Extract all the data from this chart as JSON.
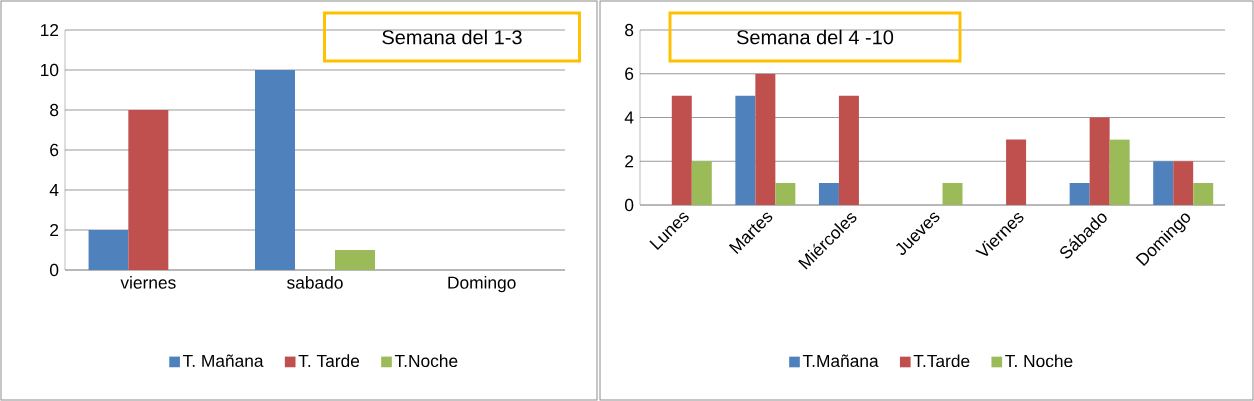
{
  "chart_data": [
    {
      "type": "bar",
      "title": "Semana del 1-3",
      "categories": [
        "viernes",
        "sabado",
        "Domingo"
      ],
      "series": [
        {
          "name": "T. Mañana",
          "color": "#4f81bd",
          "values": [
            2,
            10,
            0
          ]
        },
        {
          "name": "T. Tarde",
          "color": "#c0504d",
          "values": [
            8,
            0,
            0
          ]
        },
        {
          "name": "T.Noche",
          "color": "#9bbb59",
          "values": [
            0,
            1,
            0
          ]
        }
      ],
      "ylim": [
        0,
        12
      ],
      "yticks": [
        0,
        2,
        4,
        6,
        8,
        10,
        12
      ],
      "grid": "y",
      "legend": "bottom"
    },
    {
      "type": "bar",
      "title": "Semana del  4 -10",
      "categories": [
        "Lunes",
        "Martes",
        "Miércoles",
        "Jueves",
        "Viernes",
        "Sábado",
        "Domingo"
      ],
      "series": [
        {
          "name": "T.Mañana",
          "color": "#4f81bd",
          "values": [
            0,
            5,
            1,
            0,
            0,
            1,
            2
          ]
        },
        {
          "name": "T.Tarde",
          "color": "#c0504d",
          "values": [
            5,
            6,
            5,
            0,
            3,
            4,
            2
          ]
        },
        {
          "name": "T. Noche",
          "color": "#9bbb59",
          "values": [
            2,
            1,
            0,
            1,
            0,
            3,
            1
          ]
        }
      ],
      "ylim": [
        0,
        8
      ],
      "yticks": [
        0,
        2,
        4,
        6,
        8
      ],
      "grid": "y",
      "legend": "bottom"
    }
  ]
}
